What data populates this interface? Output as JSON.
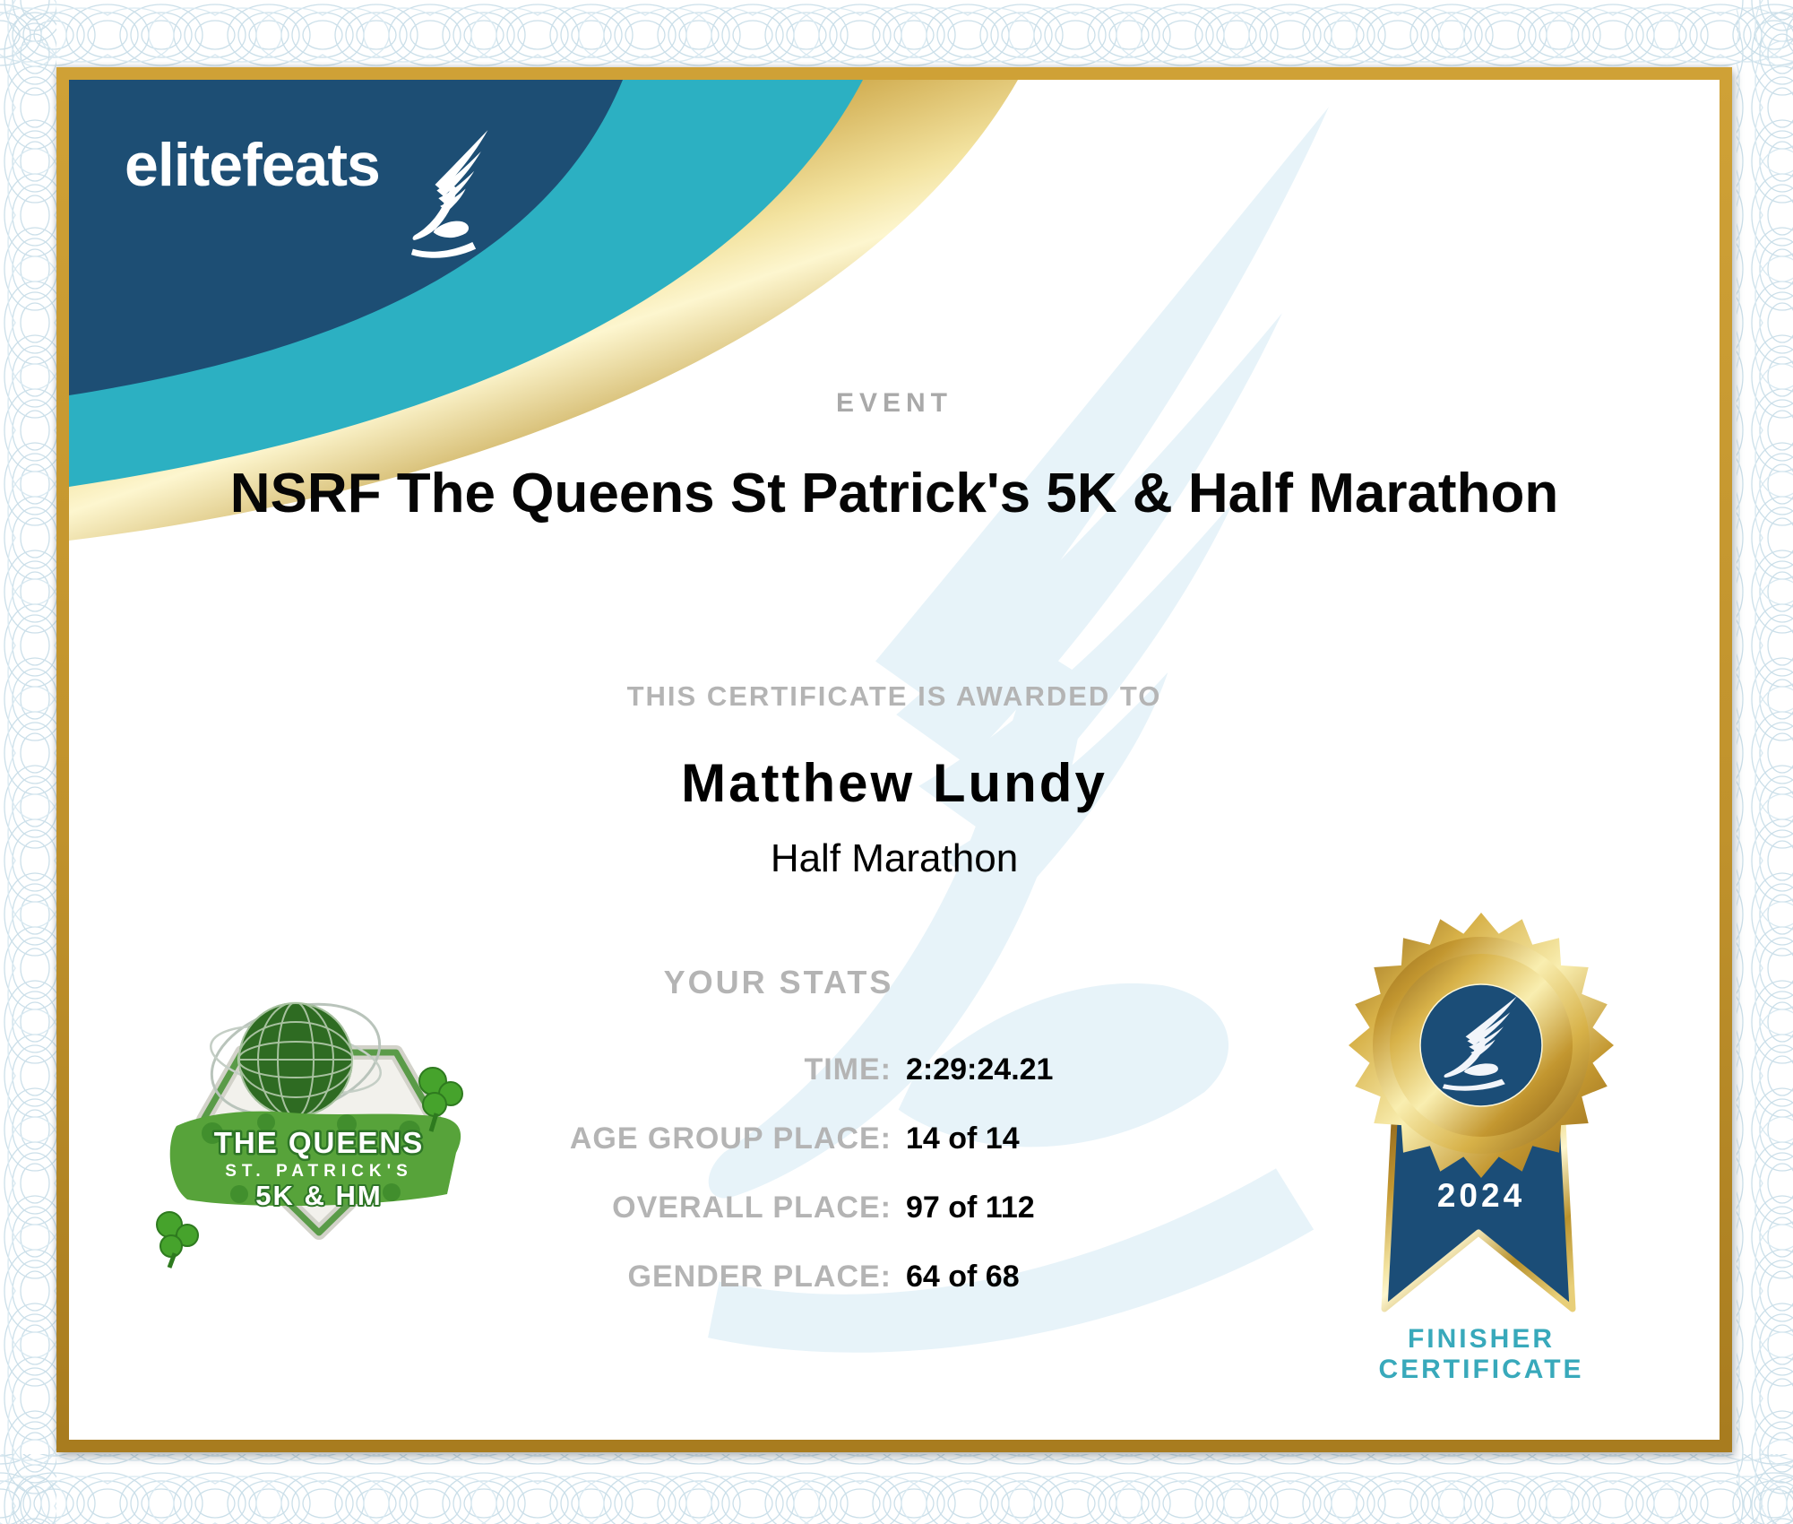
{
  "brand": {
    "wordmark": "elitefeats"
  },
  "header": {
    "event_label": "EVENT",
    "event_title": "NSRF The Queens St Patrick's 5K & Half Marathon"
  },
  "award": {
    "intro": "THIS CERTIFICATE IS AWARDED TO",
    "recipient": "Matthew Lundy",
    "division": "Half Marathon"
  },
  "stats": {
    "heading": "YOUR STATS",
    "rows": [
      {
        "label": "TIME:",
        "value": "2:29:24.21"
      },
      {
        "label": "AGE GROUP PLACE:",
        "value": "14 of 14"
      },
      {
        "label": "OVERALL PLACE:",
        "value": "97 of 112"
      },
      {
        "label": "GENDER PLACE:",
        "value": "64 of 68"
      }
    ]
  },
  "event_logo": {
    "line1": "THE QUEENS",
    "line2": "ST. PATRICK'S",
    "line3": "5K & HM"
  },
  "medal": {
    "year": "2024",
    "caption_line1": "FINISHER",
    "caption_line2": "CERTIFICATE"
  },
  "colors": {
    "navy": "#1d4e74",
    "teal_band": "#2cb0c2",
    "gold_frame": "#c0922c",
    "gray_label": "#b4b4b4",
    "finisher_teal": "#38a9bb",
    "medal_navy": "#1b4d77",
    "watermark_blue": "#e7f3f9",
    "guilloche_blue": "#cbdfe9",
    "logo_green": "#57a33a"
  }
}
